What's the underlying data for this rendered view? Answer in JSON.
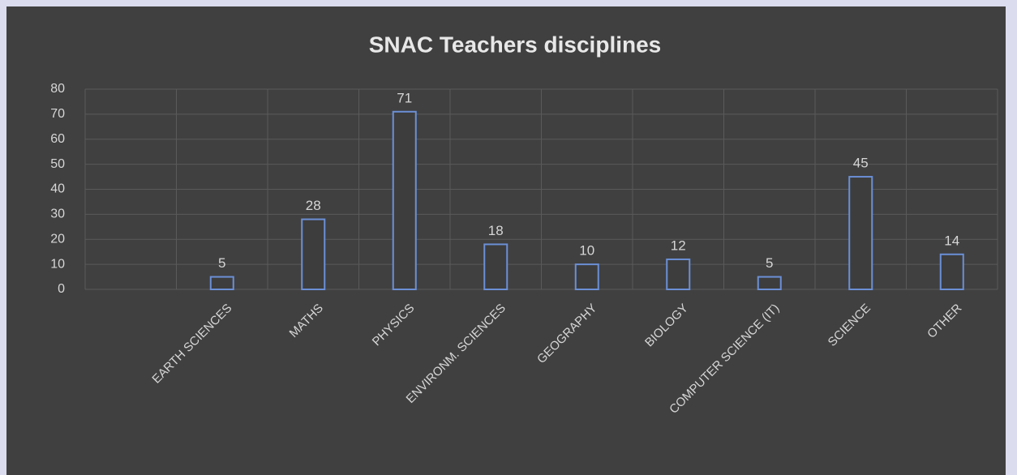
{
  "chart_data": {
    "type": "bar",
    "title": "SNAC Teachers disciplines",
    "categories": [
      null,
      "EARTH SCIENCES",
      "MATHS",
      "PHYSICS",
      "ENVIRONM. SCIENCES",
      "GEOGRAPHY",
      "BIOLOGY",
      "COMPUTER SCIENCE (IT)",
      "SCIENCE",
      "OTHER"
    ],
    "values": [
      null,
      5,
      28,
      71,
      18,
      10,
      12,
      5,
      45,
      14
    ],
    "color": "#6b8fd6",
    "ylim": [
      0,
      80
    ],
    "yticks": [
      0,
      10,
      20,
      30,
      40,
      50,
      60,
      70,
      80
    ],
    "grid": true
  }
}
